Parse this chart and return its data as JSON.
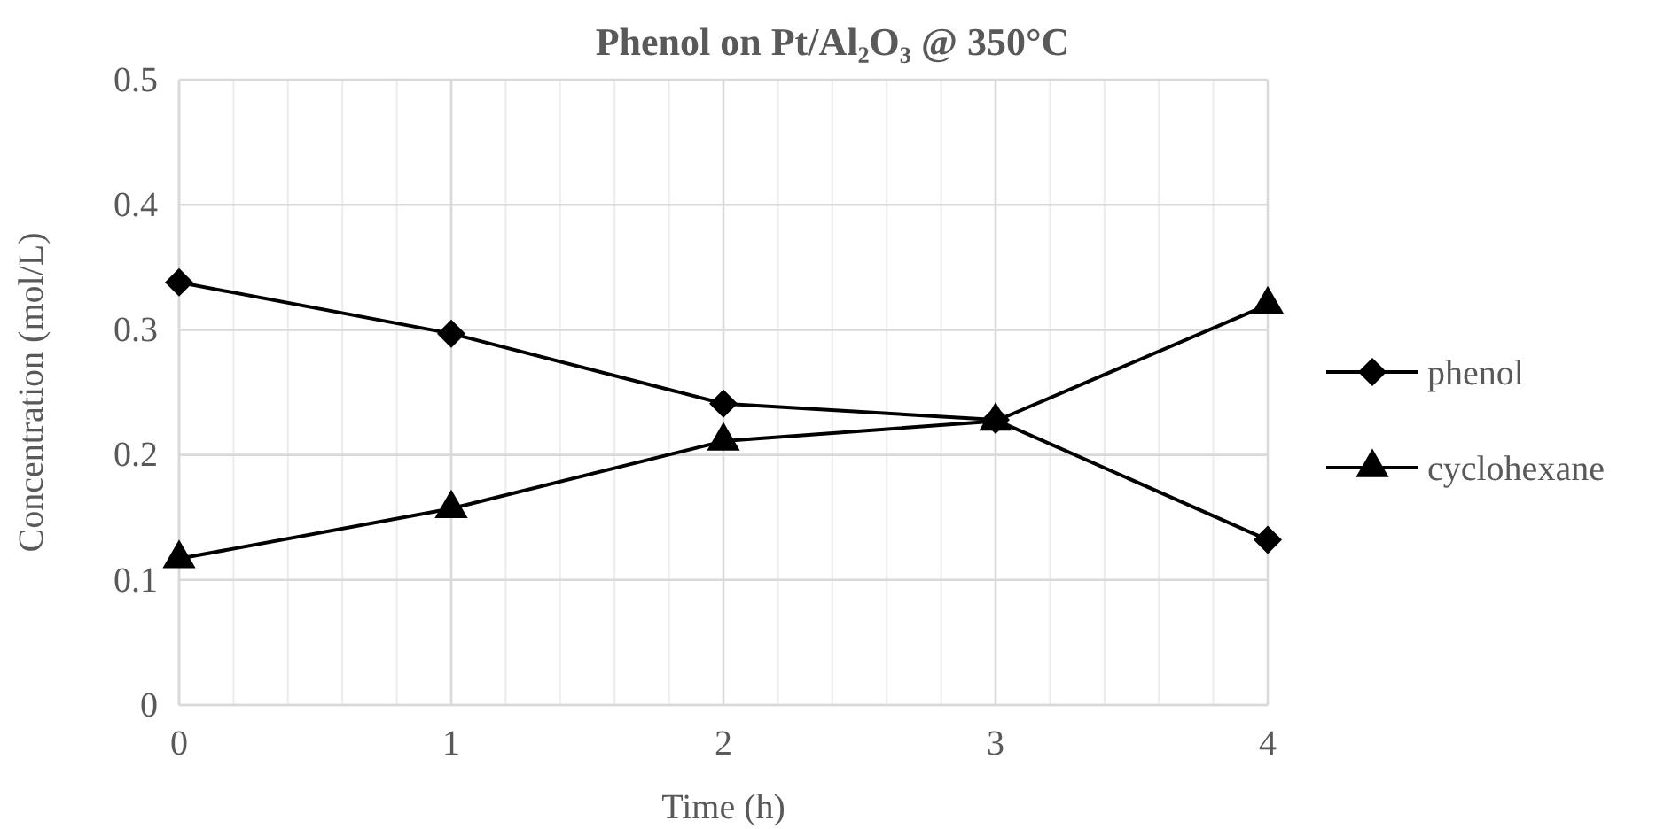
{
  "chart_data": {
    "type": "line",
    "title": "Phenol on Pt/Al₂O₃ @ 350°C",
    "xlabel": "Time (h)",
    "ylabel": "Concentration (mol/L)",
    "x": [
      0,
      1,
      2,
      3,
      4
    ],
    "series": [
      {
        "name": "phenol",
        "color": "#000000",
        "marker": "diamond",
        "values": [
          0.338,
          0.297,
          0.241,
          0.228,
          0.132
        ]
      },
      {
        "name": "cyclohexane",
        "color": "#000000",
        "marker": "triangle",
        "values": [
          0.117,
          0.157,
          0.211,
          0.227,
          0.32
        ]
      }
    ],
    "xlim": [
      0,
      4
    ],
    "xticks": [
      0,
      {
        "value": 0.2,
        "label": null
      },
      {
        "value": 0.4,
        "label": null
      },
      {
        "value": 0.6,
        "label": null
      },
      {
        "value": 0.8,
        "label": null
      },
      1,
      {
        "value": 1.2,
        "label": null
      },
      {
        "value": 1.4,
        "label": null
      },
      {
        "value": 1.6,
        "label": null
      },
      {
        "value": 1.8,
        "label": null
      },
      2,
      {
        "value": 2.2,
        "label": null
      },
      {
        "value": 2.4,
        "label": null
      },
      {
        "value": 2.6,
        "label": null
      },
      {
        "value": 2.8,
        "label": null
      },
      3,
      {
        "value": 3.2,
        "label": null
      },
      {
        "value": 3.4,
        "label": null
      },
      {
        "value": 3.6,
        "label": null
      },
      {
        "value": 3.8,
        "label": null
      },
      4
    ],
    "ylim": [
      0,
      0.5
    ],
    "yticks": [
      0,
      0.1,
      0.2,
      0.3,
      0.4,
      0.5
    ],
    "grid": true,
    "legend": "right",
    "line_style": "solid"
  }
}
